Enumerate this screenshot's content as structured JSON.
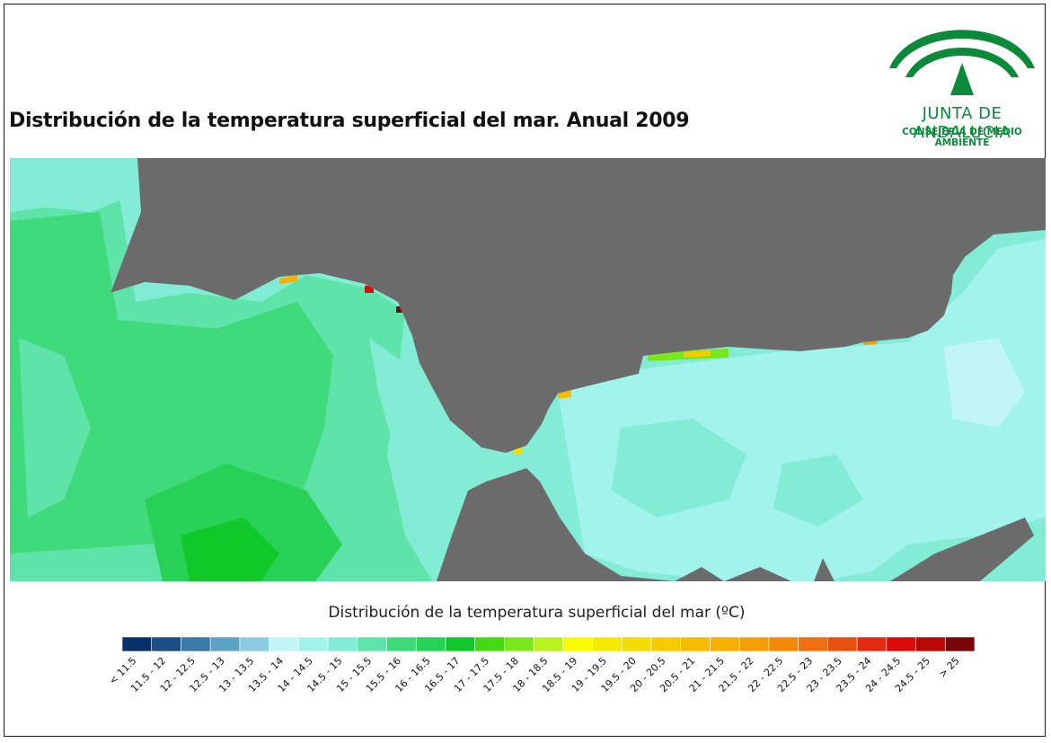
{
  "title": "Distribución de la temperatura superficial del mar. Anual 2009",
  "logo": {
    "line1": "JUNTA DE ANDALUCIA",
    "line2": "CONSEJERÍA DE MEDIO AMBIENTE"
  },
  "colors": {
    "land": "#6b6b6b",
    "logo_green": "#0c8a3a"
  },
  "legend": {
    "title": "Distribución de la temperatura superficial del mar (ºC)",
    "classes": [
      {
        "label": "< 11.5",
        "color": "#08306b"
      },
      {
        "label": "11.5 - 12",
        "color": "#1c4f85"
      },
      {
        "label": "12 - 12.5",
        "color": "#3a7aa8"
      },
      {
        "label": "12.5 - 13",
        "color": "#5aa3c6"
      },
      {
        "label": "13 - 13.5",
        "color": "#8ccbe0"
      },
      {
        "label": "13.5 - 14",
        "color": "#c2f6f6"
      },
      {
        "label": "14 - 14.5",
        "color": "#a2f3ec"
      },
      {
        "label": "14.5 - 15",
        "color": "#82ecd4"
      },
      {
        "label": "15 - 15.5",
        "color": "#5ee3a8"
      },
      {
        "label": "15.5 - 16",
        "color": "#3fda7c"
      },
      {
        "label": "16 - 16.5",
        "color": "#27d156"
      },
      {
        "label": "16.5 - 17",
        "color": "#10c829"
      },
      {
        "label": "17 - 17.5",
        "color": "#46d912"
      },
      {
        "label": "17.5 - 18",
        "color": "#7ae61b"
      },
      {
        "label": "18 - 18.5",
        "color": "#b9f21d"
      },
      {
        "label": "18.5 - 19",
        "color": "#fbfb00"
      },
      {
        "label": "19 - 19.5",
        "color": "#f4ea00"
      },
      {
        "label": "19.5 - 20",
        "color": "#f3dc00"
      },
      {
        "label": "20 - 20.5",
        "color": "#f8cb00"
      },
      {
        "label": "20.5 - 21",
        "color": "#f6bd00"
      },
      {
        "label": "21 - 21.5",
        "color": "#f5b000"
      },
      {
        "label": "21.5 - 22",
        "color": "#f49f05"
      },
      {
        "label": "22 - 22.5",
        "color": "#f28a07"
      },
      {
        "label": "22.5 - 23",
        "color": "#ee7010"
      },
      {
        "label": "23 - 23.5",
        "color": "#e85010"
      },
      {
        "label": "23.5 - 24",
        "color": "#e32b11"
      },
      {
        "label": "24 - 24.5",
        "color": "#dc0a0a"
      },
      {
        "label": "24.5 - 25",
        "color": "#b80707"
      },
      {
        "label": "> 25",
        "color": "#7a0707"
      }
    ]
  }
}
